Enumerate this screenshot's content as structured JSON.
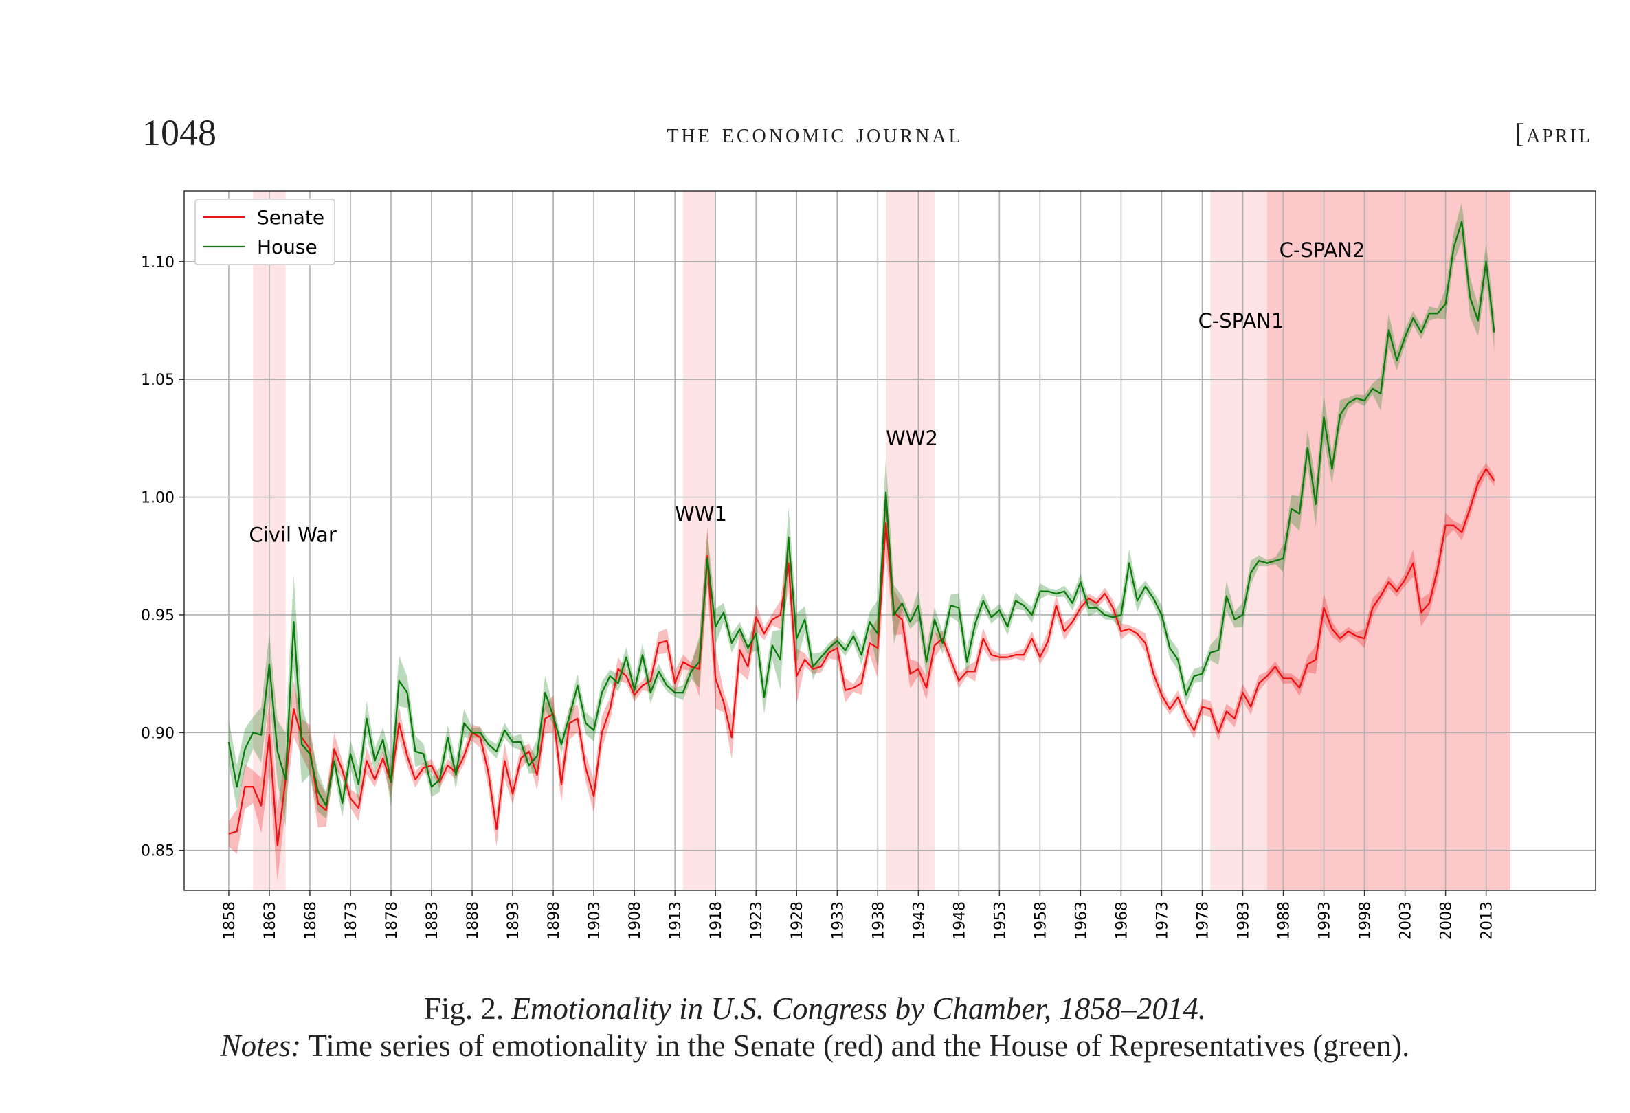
{
  "header": {
    "page_number": "1048",
    "journal_title": "the economic journal",
    "issue_month": "[april"
  },
  "caption": {
    "figure_label": "Fig. 2. ",
    "figure_title": "Emotionality in U.S. Congress by Chamber, 1858–2014.",
    "notes_label": "Notes:",
    "notes_text": " Time series of emotionality in the Senate (red) and the House of Representatives (green)."
  },
  "colors": {
    "senate": "#ee1111",
    "house": "#0a7a0a",
    "shade_light": "#ffe4e6",
    "shade_dark": "#fcc8c9"
  },
  "chart_data": {
    "type": "line",
    "title": "",
    "xlabel": "",
    "ylabel": "",
    "xlim": [
      1852.5,
      2026.5
    ],
    "ylim": [
      0.833,
      1.13
    ],
    "grid": true,
    "legend_placement": "top-left",
    "x_ticks": [
      1858,
      1863,
      1868,
      1873,
      1878,
      1883,
      1888,
      1893,
      1898,
      1903,
      1908,
      1913,
      1918,
      1923,
      1928,
      1933,
      1938,
      1943,
      1948,
      1953,
      1958,
      1963,
      1968,
      1973,
      1978,
      1983,
      1988,
      1993,
      1998,
      2003,
      2008,
      2013
    ],
    "y_ticks": [
      0.85,
      0.9,
      0.95,
      1.0,
      1.05,
      1.1
    ],
    "y_tick_labels": [
      "0.85",
      "0.90",
      "0.95",
      "1.00",
      "1.05",
      "1.10"
    ],
    "shaded_periods": [
      {
        "start": 1861,
        "end": 1865,
        "tone": "light"
      },
      {
        "start": 1914,
        "end": 1918,
        "tone": "light"
      },
      {
        "start": 1939,
        "end": 1945,
        "tone": "light"
      },
      {
        "start": 1979,
        "end": 2016,
        "tone": "light"
      },
      {
        "start": 1986,
        "end": 2016,
        "tone": "dark"
      }
    ],
    "annotations": [
      {
        "text": "Civil War",
        "x": 1860.5,
        "y": 0.981
      },
      {
        "text": "WW1",
        "x": 1913,
        "y": 0.99
      },
      {
        "text": "WW2",
        "x": 1939,
        "y": 1.022
      },
      {
        "text": "C-SPAN1",
        "x": 1977.5,
        "y": 1.072
      },
      {
        "text": "C-SPAN2",
        "x": 1987.5,
        "y": 1.102
      }
    ],
    "series": [
      {
        "name": "Senate",
        "x": [
          1858,
          1859,
          1860,
          1861,
          1862,
          1863,
          1864,
          1865,
          1866,
          1867,
          1868,
          1869,
          1870,
          1871,
          1872,
          1873,
          1874,
          1875,
          1876,
          1877,
          1878,
          1879,
          1880,
          1881,
          1882,
          1883,
          1884,
          1885,
          1886,
          1887,
          1888,
          1889,
          1890,
          1891,
          1892,
          1893,
          1894,
          1895,
          1896,
          1897,
          1898,
          1899,
          1900,
          1901,
          1902,
          1903,
          1904,
          1905,
          1906,
          1907,
          1908,
          1909,
          1910,
          1911,
          1912,
          1913,
          1914,
          1915,
          1916,
          1917,
          1918,
          1919,
          1920,
          1921,
          1922,
          1923,
          1924,
          1925,
          1926,
          1927,
          1928,
          1929,
          1930,
          1931,
          1932,
          1933,
          1934,
          1935,
          1936,
          1937,
          1938,
          1939,
          1940,
          1941,
          1942,
          1943,
          1944,
          1945,
          1946,
          1947,
          1948,
          1949,
          1950,
          1951,
          1952,
          1953,
          1954,
          1955,
          1956,
          1957,
          1958,
          1959,
          1960,
          1961,
          1962,
          1963,
          1964,
          1965,
          1966,
          1967,
          1968,
          1969,
          1970,
          1971,
          1972,
          1973,
          1974,
          1975,
          1976,
          1977,
          1978,
          1979,
          1980,
          1981,
          1982,
          1983,
          1984,
          1985,
          1986,
          1987,
          1988,
          1989,
          1990,
          1991,
          1992,
          1993,
          1994,
          1995,
          1996,
          1997,
          1998,
          1999,
          2000,
          2001,
          2002,
          2003,
          2004,
          2005,
          2006,
          2007,
          2008,
          2009,
          2010,
          2011,
          2012,
          2013,
          2014
        ],
        "y": [
          0.857,
          0.858,
          0.877,
          0.877,
          0.869,
          0.899,
          0.852,
          0.88,
          0.91,
          0.898,
          0.893,
          0.87,
          0.867,
          0.893,
          0.884,
          0.872,
          0.868,
          0.888,
          0.88,
          0.889,
          0.879,
          0.904,
          0.89,
          0.88,
          0.885,
          0.886,
          0.879,
          0.886,
          0.883,
          0.89,
          0.9,
          0.898,
          0.883,
          0.859,
          0.888,
          0.874,
          0.889,
          0.892,
          0.882,
          0.906,
          0.908,
          0.878,
          0.904,
          0.906,
          0.885,
          0.873,
          0.9,
          0.91,
          0.927,
          0.924,
          0.916,
          0.92,
          0.922,
          0.938,
          0.939,
          0.921,
          0.93,
          0.928,
          0.927,
          0.975,
          0.923,
          0.913,
          0.898,
          0.935,
          0.928,
          0.949,
          0.942,
          0.948,
          0.95,
          0.972,
          0.924,
          0.931,
          0.927,
          0.928,
          0.934,
          0.936,
          0.918,
          0.919,
          0.921,
          0.938,
          0.936,
          0.989,
          0.951,
          0.948,
          0.925,
          0.927,
          0.919,
          0.937,
          0.94,
          0.931,
          0.922,
          0.926,
          0.926,
          0.94,
          0.933,
          0.932,
          0.932,
          0.933,
          0.933,
          0.94,
          0.932,
          0.939,
          0.954,
          0.943,
          0.947,
          0.953,
          0.957,
          0.955,
          0.959,
          0.953,
          0.943,
          0.944,
          0.942,
          0.938,
          0.925,
          0.916,
          0.91,
          0.915,
          0.907,
          0.901,
          0.911,
          0.91,
          0.9,
          0.909,
          0.906,
          0.917,
          0.911,
          0.921,
          0.924,
          0.928,
          0.923,
          0.923,
          0.919,
          0.929,
          0.931,
          0.953,
          0.944,
          0.94,
          0.943,
          0.941,
          0.94,
          0.953,
          0.958,
          0.964,
          0.96,
          0.965,
          0.972,
          0.951,
          0.955,
          0.969,
          0.988,
          0.988,
          0.985,
          0.995,
          1.006,
          1.012,
          1.007
        ]
      },
      {
        "name": "House",
        "x": [
          1858,
          1859,
          1860,
          1861,
          1862,
          1863,
          1864,
          1865,
          1866,
          1867,
          1868,
          1869,
          1870,
          1871,
          1872,
          1873,
          1874,
          1875,
          1876,
          1877,
          1878,
          1879,
          1880,
          1881,
          1882,
          1883,
          1884,
          1885,
          1886,
          1887,
          1888,
          1889,
          1890,
          1891,
          1892,
          1893,
          1894,
          1895,
          1896,
          1897,
          1898,
          1899,
          1900,
          1901,
          1902,
          1903,
          1904,
          1905,
          1906,
          1907,
          1908,
          1909,
          1910,
          1911,
          1912,
          1913,
          1914,
          1915,
          1916,
          1917,
          1918,
          1919,
          1920,
          1921,
          1922,
          1923,
          1924,
          1925,
          1926,
          1927,
          1928,
          1929,
          1930,
          1931,
          1932,
          1933,
          1934,
          1935,
          1936,
          1937,
          1938,
          1939,
          1940,
          1941,
          1942,
          1943,
          1944,
          1945,
          1946,
          1947,
          1948,
          1949,
          1950,
          1951,
          1952,
          1953,
          1954,
          1955,
          1956,
          1957,
          1958,
          1959,
          1960,
          1961,
          1962,
          1963,
          1964,
          1965,
          1966,
          1967,
          1968,
          1969,
          1970,
          1971,
          1972,
          1973,
          1974,
          1975,
          1976,
          1977,
          1978,
          1979,
          1980,
          1981,
          1982,
          1983,
          1984,
          1985,
          1986,
          1987,
          1988,
          1989,
          1990,
          1991,
          1992,
          1993,
          1994,
          1995,
          1996,
          1997,
          1998,
          1999,
          2000,
          2001,
          2002,
          2003,
          2004,
          2005,
          2006,
          2007,
          2008,
          2009,
          2010,
          2011,
          2012,
          2013,
          2014
        ],
        "y": [
          0.896,
          0.877,
          0.893,
          0.9,
          0.899,
          0.929,
          0.892,
          0.88,
          0.947,
          0.895,
          0.891,
          0.875,
          0.869,
          0.888,
          0.87,
          0.891,
          0.878,
          0.906,
          0.888,
          0.897,
          0.879,
          0.922,
          0.917,
          0.892,
          0.891,
          0.877,
          0.88,
          0.898,
          0.882,
          0.904,
          0.9,
          0.9,
          0.895,
          0.892,
          0.901,
          0.896,
          0.896,
          0.886,
          0.89,
          0.917,
          0.907,
          0.895,
          0.907,
          0.92,
          0.904,
          0.901,
          0.917,
          0.924,
          0.921,
          0.932,
          0.918,
          0.933,
          0.917,
          0.926,
          0.92,
          0.917,
          0.917,
          0.926,
          0.93,
          0.974,
          0.945,
          0.951,
          0.938,
          0.944,
          0.936,
          0.942,
          0.915,
          0.937,
          0.931,
          0.983,
          0.94,
          0.948,
          0.928,
          0.932,
          0.936,
          0.939,
          0.935,
          0.941,
          0.933,
          0.947,
          0.942,
          1.002,
          0.95,
          0.955,
          0.947,
          0.954,
          0.93,
          0.948,
          0.938,
          0.954,
          0.953,
          0.93,
          0.946,
          0.956,
          0.949,
          0.952,
          0.945,
          0.956,
          0.954,
          0.95,
          0.96,
          0.96,
          0.959,
          0.96,
          0.955,
          0.964,
          0.953,
          0.953,
          0.95,
          0.949,
          0.95,
          0.972,
          0.956,
          0.962,
          0.957,
          0.95,
          0.936,
          0.931,
          0.916,
          0.924,
          0.925,
          0.934,
          0.935,
          0.958,
          0.948,
          0.95,
          0.968,
          0.973,
          0.972,
          0.973,
          0.974,
          0.995,
          0.993,
          1.021,
          0.997,
          1.034,
          1.012,
          1.035,
          1.04,
          1.042,
          1.041,
          1.046,
          1.044,
          1.071,
          1.058,
          1.068,
          1.076,
          1.07,
          1.078,
          1.078,
          1.082,
          1.106,
          1.117,
          1.085,
          1.075,
          1.1,
          1.07
        ]
      }
    ]
  }
}
